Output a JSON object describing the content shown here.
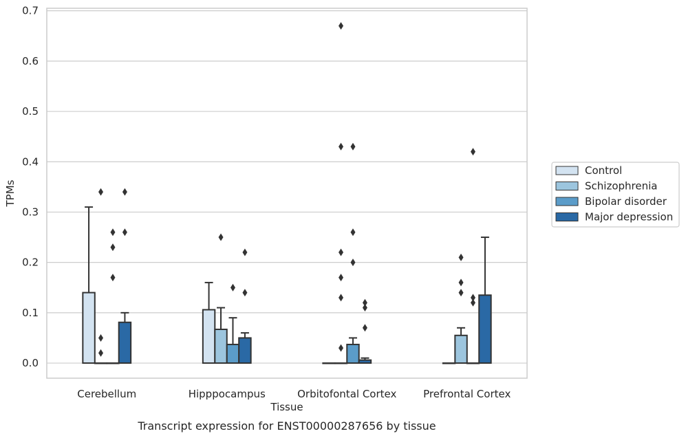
{
  "chart_data": {
    "type": "bar",
    "xlabel": "Tissue",
    "ylabel": "TPMs",
    "caption": "Transcript expression for ENST00000287656 by tissue",
    "ylim": [
      -0.03,
      0.705
    ],
    "yticks": [
      "0.0",
      "0.1",
      "0.2",
      "0.3",
      "0.4",
      "0.5",
      "0.6",
      "0.7"
    ],
    "grid": "horizontal",
    "legend_position": "right",
    "categories": [
      "Cerebellum",
      "Hipppocampus",
      "Orbitofontal Cortex",
      "Prefrontal Cortex"
    ],
    "series": [
      {
        "name": "Control",
        "color": "#d3e3f1",
        "values": [
          0.14,
          0.106,
          0.0,
          0.0
        ],
        "error_upper": [
          0.31,
          0.16,
          null,
          null
        ],
        "outliers": [
          [],
          [],
          [],
          []
        ]
      },
      {
        "name": "Schizophrenia",
        "color": "#9cc5de",
        "values": [
          0.0,
          0.067,
          0.0,
          0.055
        ],
        "error_upper": [
          null,
          0.11,
          null,
          0.07
        ],
        "outliers": [
          [
            0.34,
            0.05,
            0.02
          ],
          [
            0.25
          ],
          [
            0.43,
            0.22,
            0.17,
            0.13,
            0.03,
            0.67
          ],
          [
            0.21,
            0.16,
            0.14
          ]
        ]
      },
      {
        "name": "Bipolar disorder",
        "color": "#5b9cc9",
        "values": [
          0.0,
          0.037,
          0.037,
          0.0
        ],
        "error_upper": [
          null,
          0.09,
          0.05,
          null
        ],
        "outliers": [
          [
            0.26,
            0.23,
            0.17
          ],
          [
            0.15
          ],
          [
            0.43,
            0.26,
            0.2
          ],
          [
            0.13,
            0.12,
            0.42
          ]
        ]
      },
      {
        "name": "Major depression",
        "color": "#2a69a5",
        "values": [
          0.081,
          0.05,
          0.006,
          0.135
        ],
        "error_upper": [
          0.1,
          0.06,
          0.01,
          0.25
        ],
        "outliers": [
          [
            0.34,
            0.26
          ],
          [
            0.22,
            0.14
          ],
          [
            0.12,
            0.11,
            0.07
          ],
          []
        ]
      }
    ]
  }
}
